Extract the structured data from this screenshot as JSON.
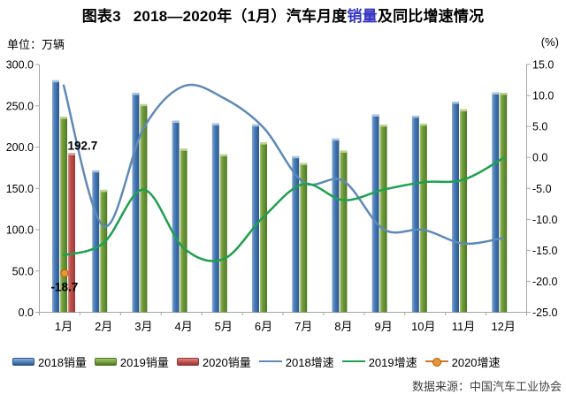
{
  "title": {
    "tag": "图表3",
    "pre": "2018—2020年（1月）汽车月度",
    "highlight": "销量",
    "post": "及同比增速情况"
  },
  "axis_units": {
    "left": "单位：万辆",
    "right": "(%)"
  },
  "source": "数据来源：中国汽车工业协会",
  "colors": {
    "axis": "#a6a6a6",
    "text": "#000000",
    "source_text": "#404040",
    "title_highlight": "#3636c2"
  },
  "chart_data": {
    "type": "combo-bar-line",
    "title": "2018—2020年（1月）汽车月度销量及同比增速情况",
    "categories": [
      "1月",
      "2月",
      "3月",
      "4月",
      "5月",
      "6月",
      "7月",
      "8月",
      "9月",
      "10月",
      "11月",
      "12月"
    ],
    "left_axis": {
      "label": "单位：万辆",
      "min": 0,
      "max": 300,
      "step": 50,
      "tick_labels": [
        "300.0",
        "250.0",
        "200.0",
        "150.0",
        "100.0",
        "50.0",
        "0.0"
      ]
    },
    "right_axis": {
      "label": "(%)",
      "min": -25,
      "max": 15,
      "step": 5,
      "tick_labels": [
        "15.0",
        "10.0",
        "5.0",
        "0.0",
        "-5.0",
        "-10.0",
        "-15.0",
        "-20.0",
        "-25.0"
      ]
    },
    "grid": "none",
    "legend_position": "bottom",
    "bar_series": [
      {
        "name": "2018销量",
        "color": "#4f81bd",
        "gradient": [
          "#8cacd4",
          "#4f81bd",
          "#36689e",
          "#2e5884"
        ],
        "cap": "#a9c2e0",
        "values": [
          280.9,
          171.8,
          265.6,
          231.9,
          228.8,
          227.4,
          188.9,
          210.3,
          239.4,
          238.0,
          254.8,
          266.2
        ]
      },
      {
        "name": "2019销量",
        "color": "#76a03c",
        "gradient": [
          "#a9c374",
          "#76a03c",
          "#5e8a2f",
          "#4c7526"
        ],
        "cap": "#bdd491",
        "values": [
          236.7,
          148.2,
          252.0,
          198.0,
          191.3,
          205.6,
          180.8,
          195.8,
          227.1,
          228.4,
          245.7,
          265.8
        ]
      },
      {
        "name": "2020销量",
        "color": "#c0504d",
        "gradient": [
          "#d88a85",
          "#c0504d",
          "#a84643",
          "#943735"
        ],
        "cap": "#e2a19c",
        "values": [
          192.7,
          null,
          null,
          null,
          null,
          null,
          null,
          null,
          null,
          null,
          null,
          null
        ]
      }
    ],
    "line_series": [
      {
        "name": "2018增速",
        "color": "#5e89b8",
        "values": [
          11.6,
          -11.1,
          4.7,
          11.5,
          9.6,
          4.8,
          -4.0,
          -3.8,
          -11.6,
          -11.7,
          -13.9,
          -13.0
        ]
      },
      {
        "name": "2019增速",
        "color": "#1fa04f",
        "values": [
          -15.8,
          -13.8,
          -5.2,
          -14.6,
          -16.4,
          -9.6,
          -4.3,
          -6.9,
          -5.2,
          -4.0,
          -3.6,
          -0.1
        ]
      },
      {
        "name": "2020增速",
        "color": "#d2772e",
        "marker": {
          "fill": "#eb9431",
          "stroke": "#a35e14"
        },
        "values": [
          -18.7,
          null,
          null,
          null,
          null,
          null,
          null,
          null,
          null,
          null,
          null,
          null
        ]
      }
    ],
    "annotations": [
      {
        "text": "192.7",
        "attach": "bar",
        "series": "2020销量",
        "category": "1月"
      },
      {
        "text": "-18.7",
        "attach": "marker",
        "series": "2020增速",
        "category": "1月"
      }
    ],
    "legend_order": [
      "2018销量",
      "2019销量",
      "2020销量",
      "2018增速",
      "2019增速",
      "2020增速"
    ]
  }
}
